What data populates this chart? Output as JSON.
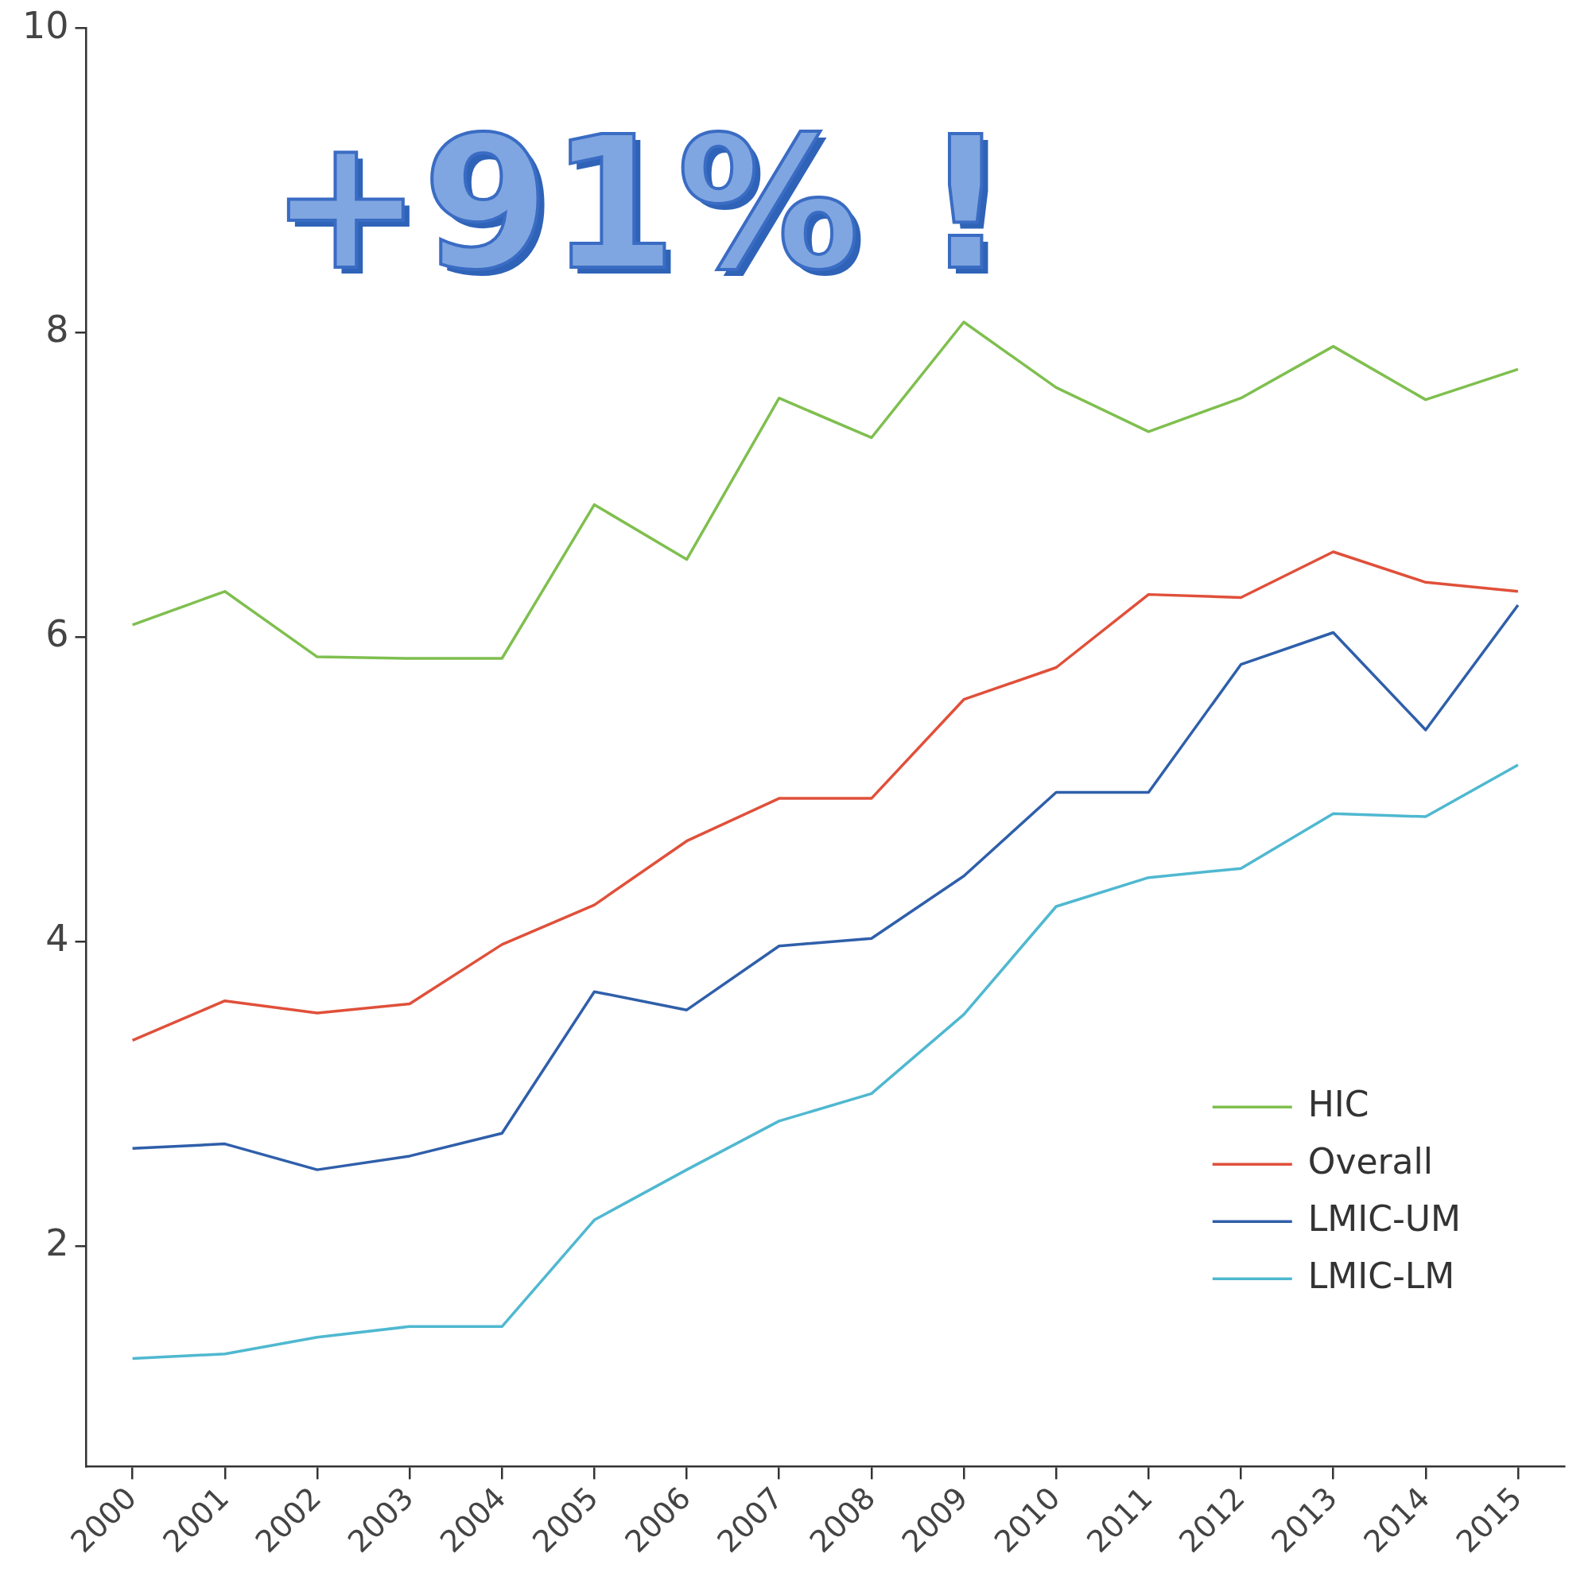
{
  "chart_data": {
    "type": "line",
    "categories": [
      "2000",
      "2001",
      "2002",
      "2003",
      "2004",
      "2005",
      "2006",
      "2007",
      "2008",
      "2009",
      "2010",
      "2011",
      "2012",
      "2013",
      "2014",
      "2015"
    ],
    "ylim": [
      0.55,
      10
    ],
    "yticks": [
      2,
      4,
      6,
      8,
      10
    ],
    "grid": false,
    "legend": "bottom right",
    "marker": "none",
    "line_style": "solid",
    "annotations": [
      "+91% !"
    ],
    "series": [
      {
        "name": "HIC",
        "color": "#7fbf4f",
        "values": [
          6.08,
          6.3,
          5.87,
          5.86,
          5.86,
          6.87,
          6.51,
          7.57,
          7.31,
          8.07,
          7.64,
          7.35,
          7.57,
          7.91,
          7.56,
          7.76
        ]
      },
      {
        "name": "Overall",
        "color": "#e0503a",
        "values": [
          3.35,
          3.61,
          3.53,
          3.59,
          3.98,
          4.24,
          4.66,
          4.94,
          4.94,
          5.59,
          5.8,
          6.28,
          6.26,
          6.56,
          6.36,
          6.3
        ]
      },
      {
        "name": "LMIC-UM",
        "color": "#2f5faa",
        "values": [
          2.64,
          2.67,
          2.5,
          2.59,
          2.74,
          3.67,
          3.55,
          3.97,
          4.02,
          4.43,
          4.98,
          4.98,
          5.82,
          6.03,
          5.39,
          6.21
        ]
      },
      {
        "name": "LMIC-LM",
        "color": "#4fb8d0",
        "values": [
          1.26,
          1.29,
          1.4,
          1.47,
          1.47,
          2.17,
          2.5,
          2.82,
          3.0,
          3.52,
          4.23,
          4.42,
          4.48,
          4.84,
          4.82,
          5.16
        ]
      }
    ]
  }
}
